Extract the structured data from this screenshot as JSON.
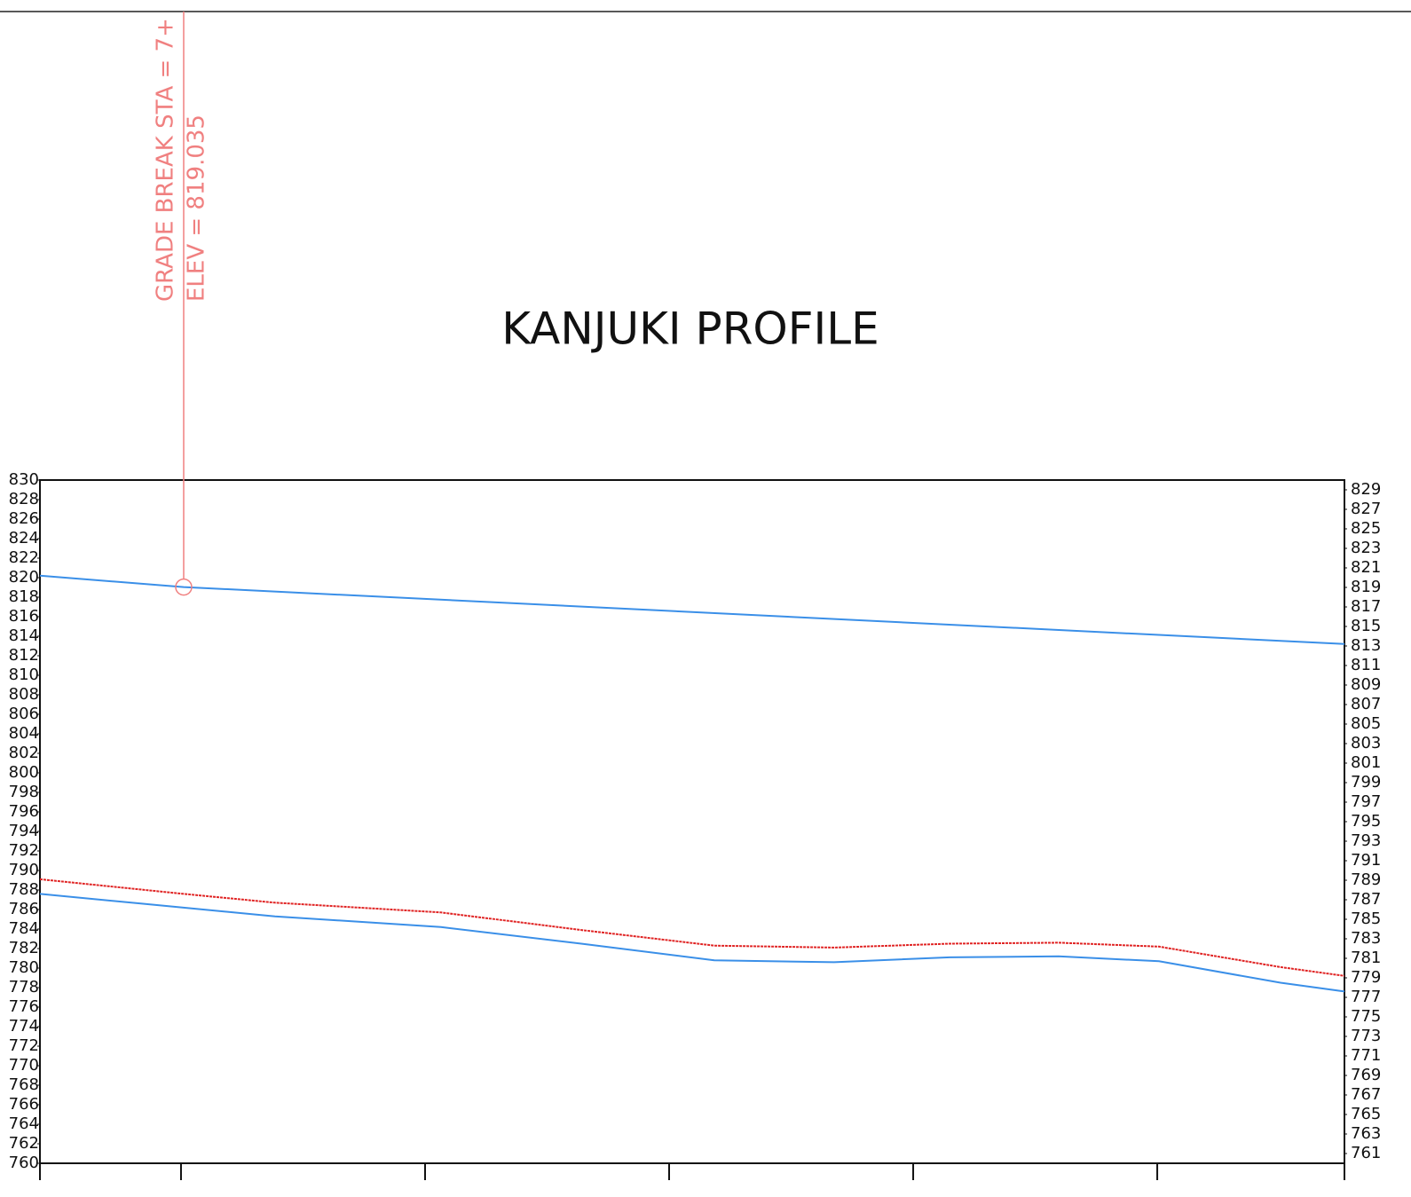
{
  "chart_data": {
    "type": "line",
    "title": "KANJUKI PROFILE",
    "xlim": [
      642.2,
      1176.7
    ],
    "xticks": [
      700,
      800,
      900,
      1000,
      1100
    ],
    "ylim": [
      760,
      830
    ],
    "yticks": [
      760,
      762,
      764,
      766,
      768,
      770,
      772,
      774,
      776,
      778,
      780,
      782,
      784,
      786,
      788,
      790,
      792,
      794,
      796,
      798,
      800,
      802,
      804,
      806,
      808,
      810,
      812,
      814,
      816,
      818,
      820,
      822,
      824,
      826,
      828,
      830
    ],
    "y2lim": [
      760,
      830
    ],
    "y2ticks": [
      761,
      763,
      765,
      767,
      769,
      771,
      773,
      775,
      777,
      779,
      781,
      783,
      785,
      787,
      789,
      791,
      793,
      795,
      797,
      799,
      801,
      803,
      805,
      807,
      809,
      811,
      813,
      815,
      817,
      819,
      821,
      823,
      825,
      827,
      829
    ],
    "series": [
      {
        "color": "#3a8fe8",
        "x": [
          642.2,
          701.1,
          1176.7
        ],
        "values": [
          820.2,
          819.035,
          813.2
        ]
      },
      {
        "color": "#e02424",
        "dashed": true,
        "x": [
          642.2,
          701.1,
          738.5,
          806.5,
          864.0,
          918.5,
          967.6,
          1014.9,
          1059.6,
          1100.7,
          1150.5,
          1176.7
        ],
        "values": [
          789.1,
          787.6,
          786.7,
          785.7,
          783.9,
          782.3,
          782.1,
          782.5,
          782.6,
          782.2,
          780.1,
          779.2
        ]
      },
      {
        "color": "#3a8fe8",
        "x": [
          642.2,
          684.0,
          738.5,
          806.5,
          864.0,
          918.5,
          967.6,
          1014.9,
          1059.6,
          1100.7,
          1150.5,
          1176.7
        ],
        "values": [
          787.6,
          786.6,
          785.3,
          784.2,
          782.5,
          780.8,
          780.6,
          781.1,
          781.2,
          780.7,
          778.5,
          777.6
        ]
      }
    ],
    "annotation": {
      "lines": [
        "GRADE BREAK STA = 7+",
        "ELEV =  819.035"
      ],
      "x": 701.1,
      "y": 819.035,
      "color": "#f08080"
    }
  }
}
